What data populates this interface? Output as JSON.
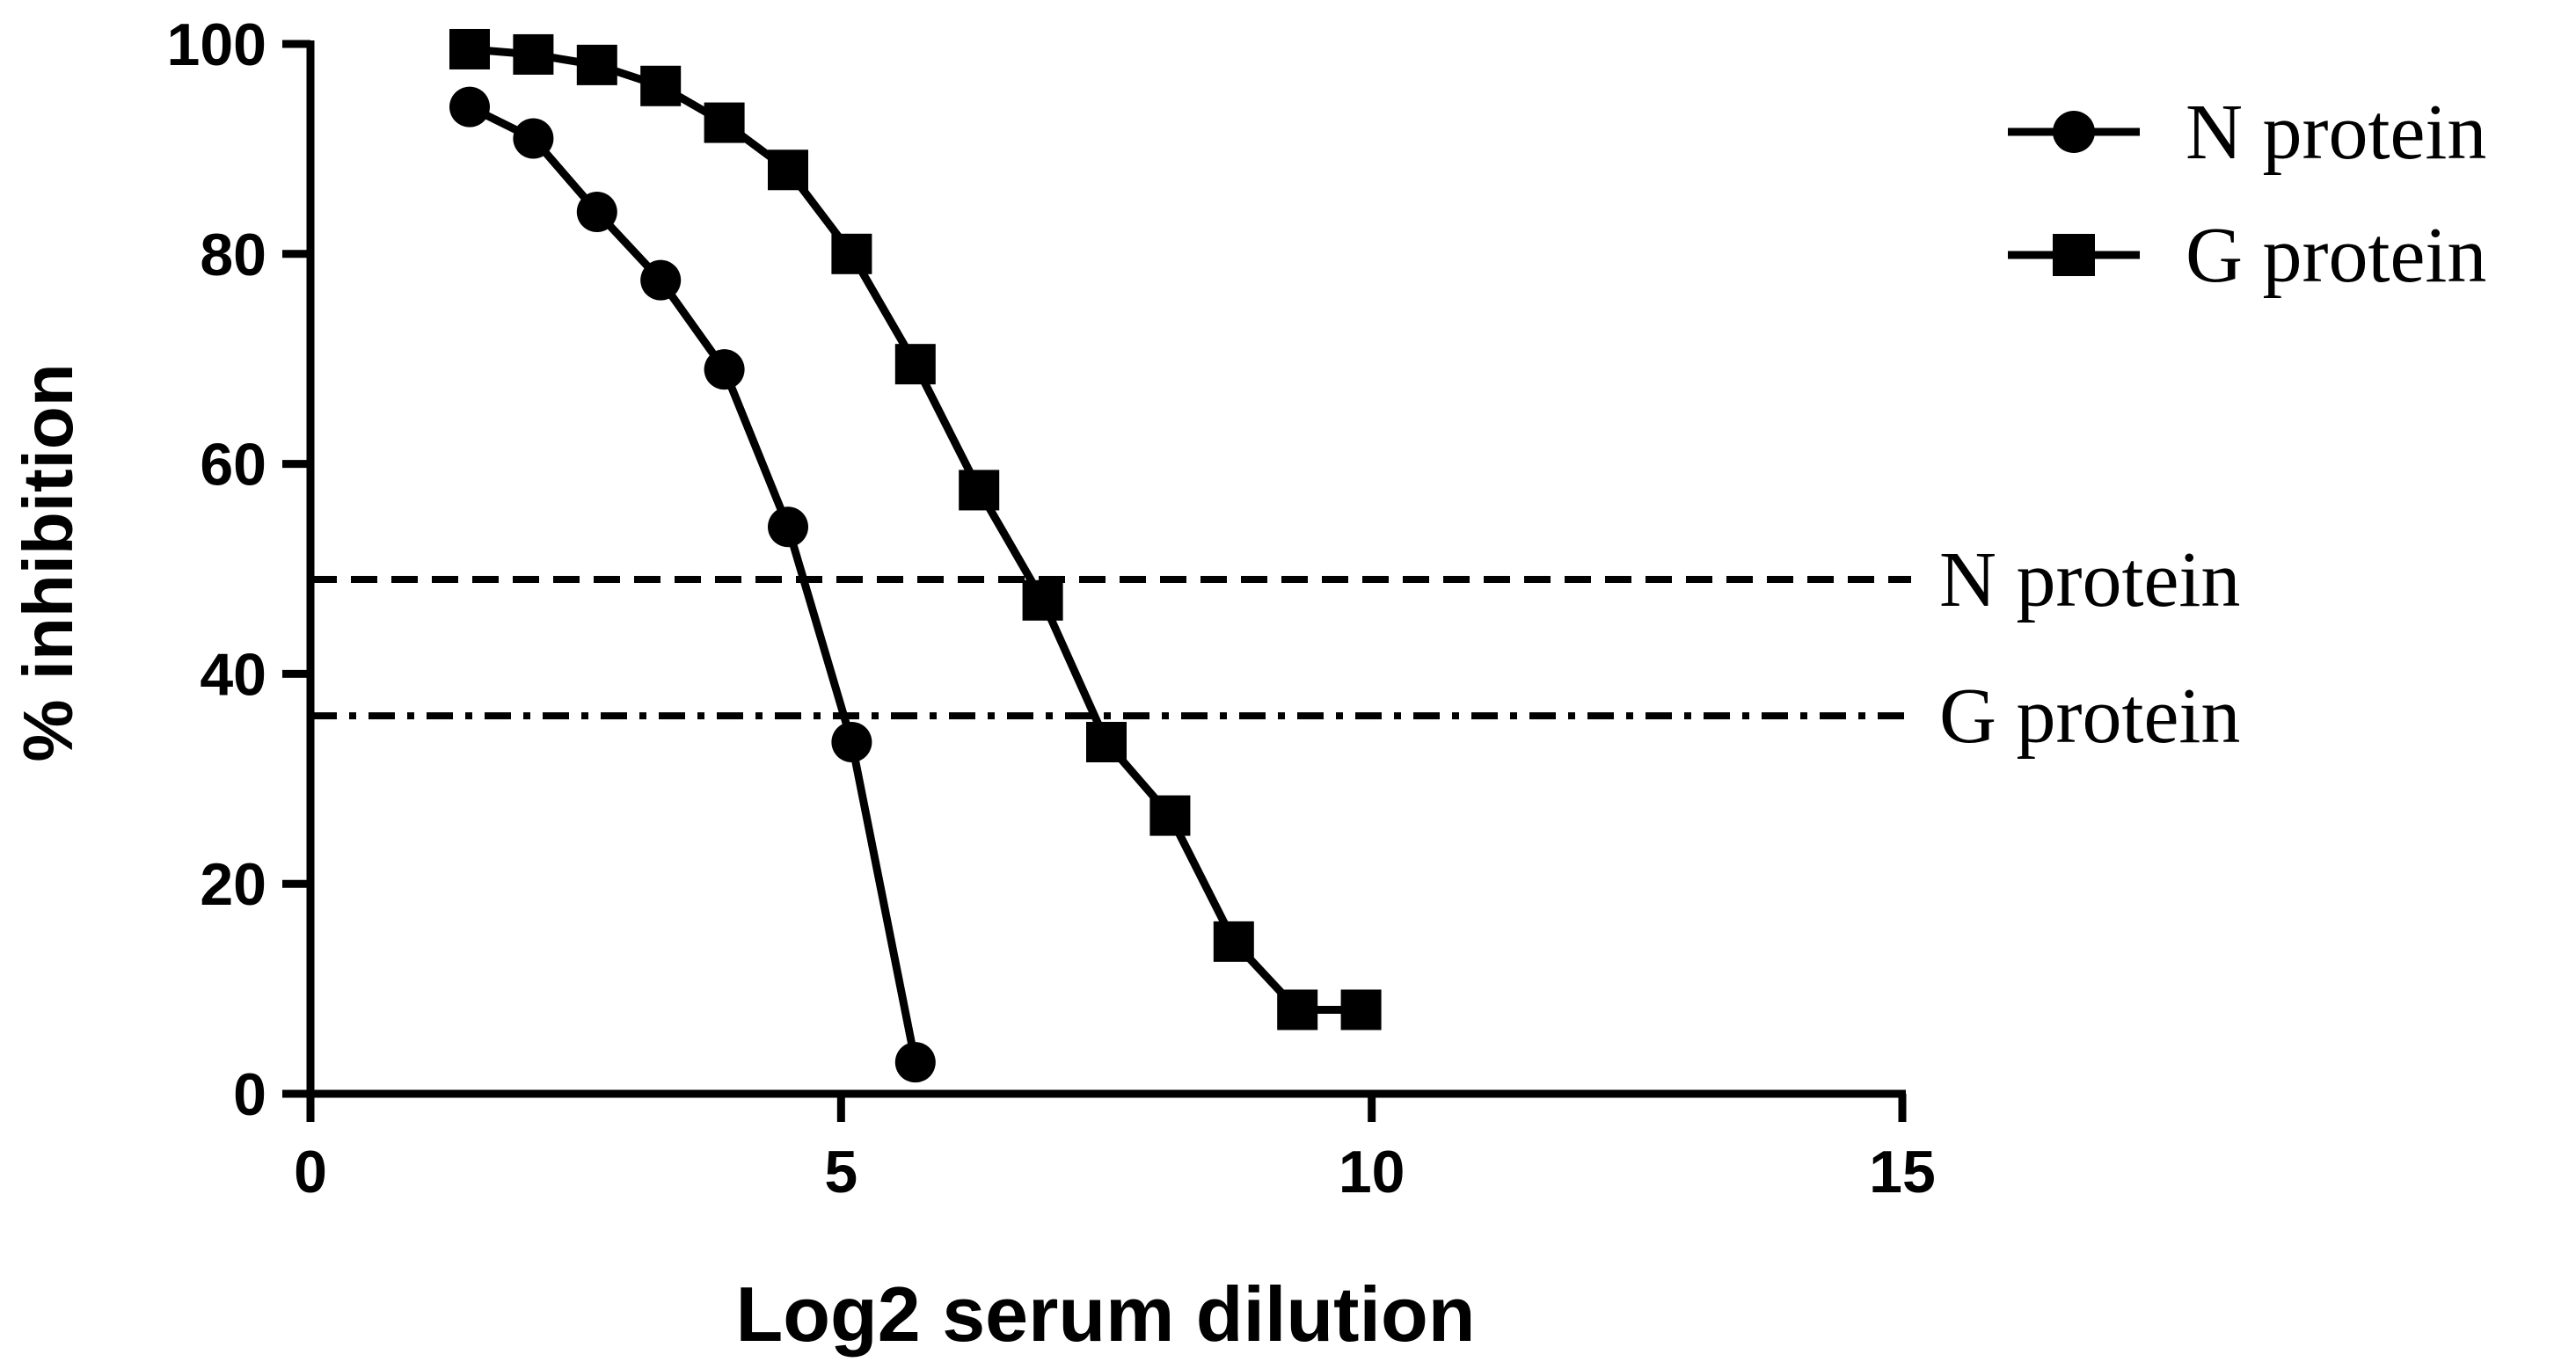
{
  "chart_data": {
    "type": "line",
    "xlabel": "Log2 serum dilution",
    "ylabel": "% inhibition",
    "xlim": [
      0,
      15
    ],
    "ylim": [
      0,
      100
    ],
    "x_ticks": [
      "0",
      "5",
      "10",
      "15"
    ],
    "y_ticks": [
      "0",
      "20",
      "40",
      "60",
      "80",
      "100"
    ],
    "grid": false,
    "legend": "top-right",
    "series": [
      {
        "name": "N protein",
        "marker": "circle",
        "points": [
          [
            1.5,
            94
          ],
          [
            2.1,
            91
          ],
          [
            2.7,
            84
          ],
          [
            3.3,
            77.5
          ],
          [
            3.9,
            69
          ],
          [
            4.5,
            54
          ],
          [
            5.1,
            33.5
          ],
          [
            5.7,
            3
          ]
        ]
      },
      {
        "name": "G protein",
        "marker": "square",
        "points": [
          [
            1.5,
            99.5
          ],
          [
            2.1,
            99
          ],
          [
            2.7,
            98
          ],
          [
            3.3,
            96
          ],
          [
            3.9,
            92.5
          ],
          [
            4.5,
            88
          ],
          [
            5.1,
            80
          ],
          [
            5.7,
            69.5
          ],
          [
            6.3,
            57.5
          ],
          [
            6.9,
            47
          ],
          [
            7.5,
            33.5
          ],
          [
            8.1,
            26.5
          ],
          [
            8.7,
            14.5
          ],
          [
            9.3,
            8
          ],
          [
            9.9,
            8
          ]
        ]
      }
    ],
    "reference_lines": [
      {
        "label": "N protein",
        "y": 49,
        "style": "dashed"
      },
      {
        "label": "G protein",
        "y": 36,
        "style": "dash-dot"
      }
    ],
    "colors": {
      "line": "#000000",
      "background": "#ffffff"
    }
  }
}
